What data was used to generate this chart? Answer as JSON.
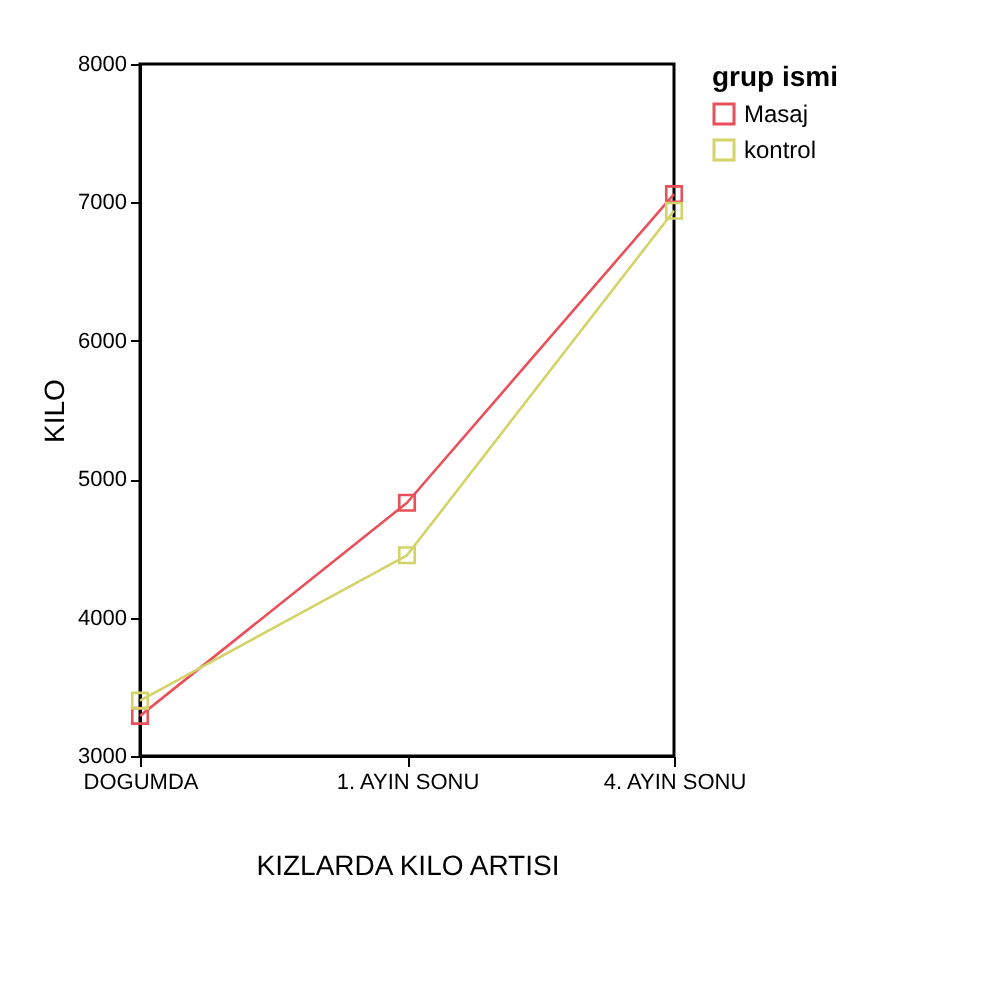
{
  "chart_data": {
    "type": "line",
    "xlabel": "KIZLARDA KILO ARTISI",
    "ylabel": "KILO",
    "legend_title": "grup ismi",
    "categories": [
      "DOGUMDA",
      "1. AYIN SONU",
      "4. AYIN SONU"
    ],
    "series": [
      {
        "name": "Masaj",
        "color": "#e8505a",
        "values": [
          3290,
          4830,
          7060
        ]
      },
      {
        "name": "kontrol",
        "color": "#d4d36a",
        "values": [
          3400,
          4450,
          6940
        ]
      }
    ],
    "ylim": [
      3000,
      8000
    ],
    "yticks": [
      3000,
      4000,
      5000,
      6000,
      7000,
      8000
    ],
    "grid": false,
    "legend": "right",
    "marker": "square",
    "line_style": "solid"
  }
}
